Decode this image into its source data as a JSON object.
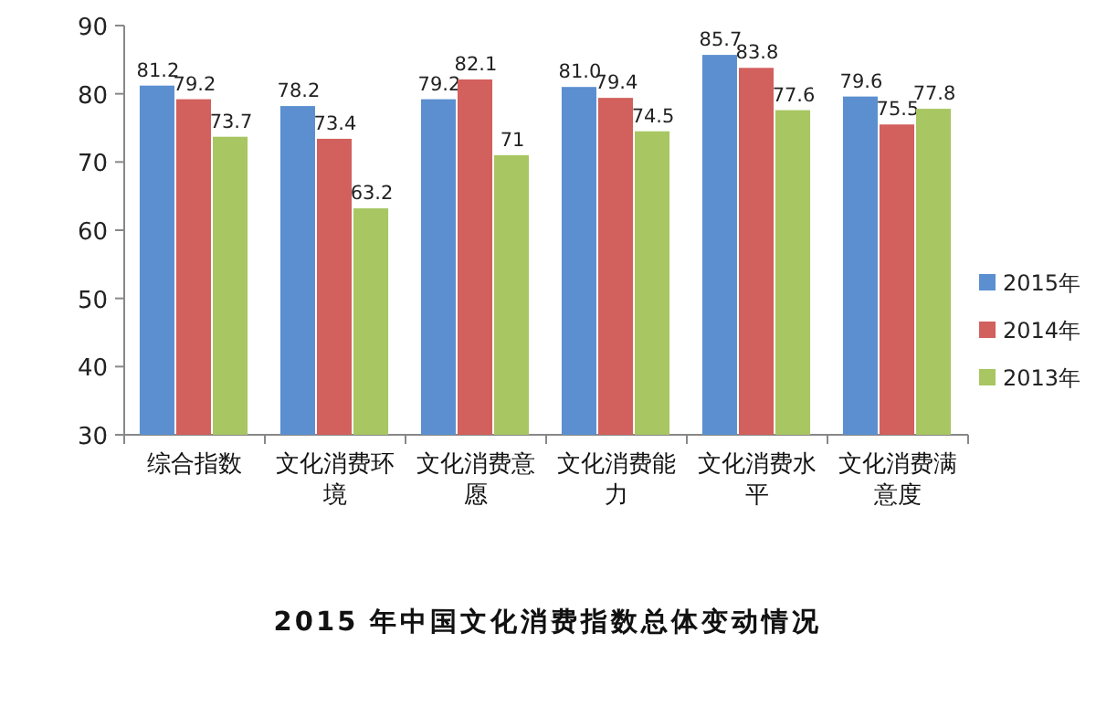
{
  "chart_data": {
    "type": "bar",
    "title": "2015 年中国文化消费指数总体变动情况",
    "categories": [
      "综合指数",
      "文化消费环境",
      "文化消费意愿",
      "文化消费能力",
      "文化消费水平",
      "文化消费满意度"
    ],
    "series": [
      {
        "name": "2015年",
        "color": "#5b8fd0",
        "values": [
          81.2,
          78.2,
          79.2,
          81.0,
          85.7,
          79.6
        ],
        "value_labels": [
          "81.2",
          "78.2",
          "79.2",
          "81.0",
          "85.7",
          "79.6"
        ]
      },
      {
        "name": "2014年",
        "color": "#d2605c",
        "values": [
          79.2,
          73.4,
          82.1,
          79.4,
          83.8,
          75.5
        ],
        "value_labels": [
          "79.2",
          "73.4",
          "82.1",
          "79.4",
          "83.8",
          "75.5"
        ]
      },
      {
        "name": "2013年",
        "color": "#a8c662",
        "values": [
          73.7,
          63.2,
          71,
          74.5,
          77.6,
          77.8
        ],
        "value_labels": [
          "73.7",
          "63.2",
          "71",
          "74.5",
          "77.6",
          "77.8"
        ]
      }
    ],
    "ylim": [
      30,
      90
    ],
    "yticks": [
      30,
      40,
      50,
      60,
      70,
      80,
      90
    ],
    "legend": "right"
  }
}
